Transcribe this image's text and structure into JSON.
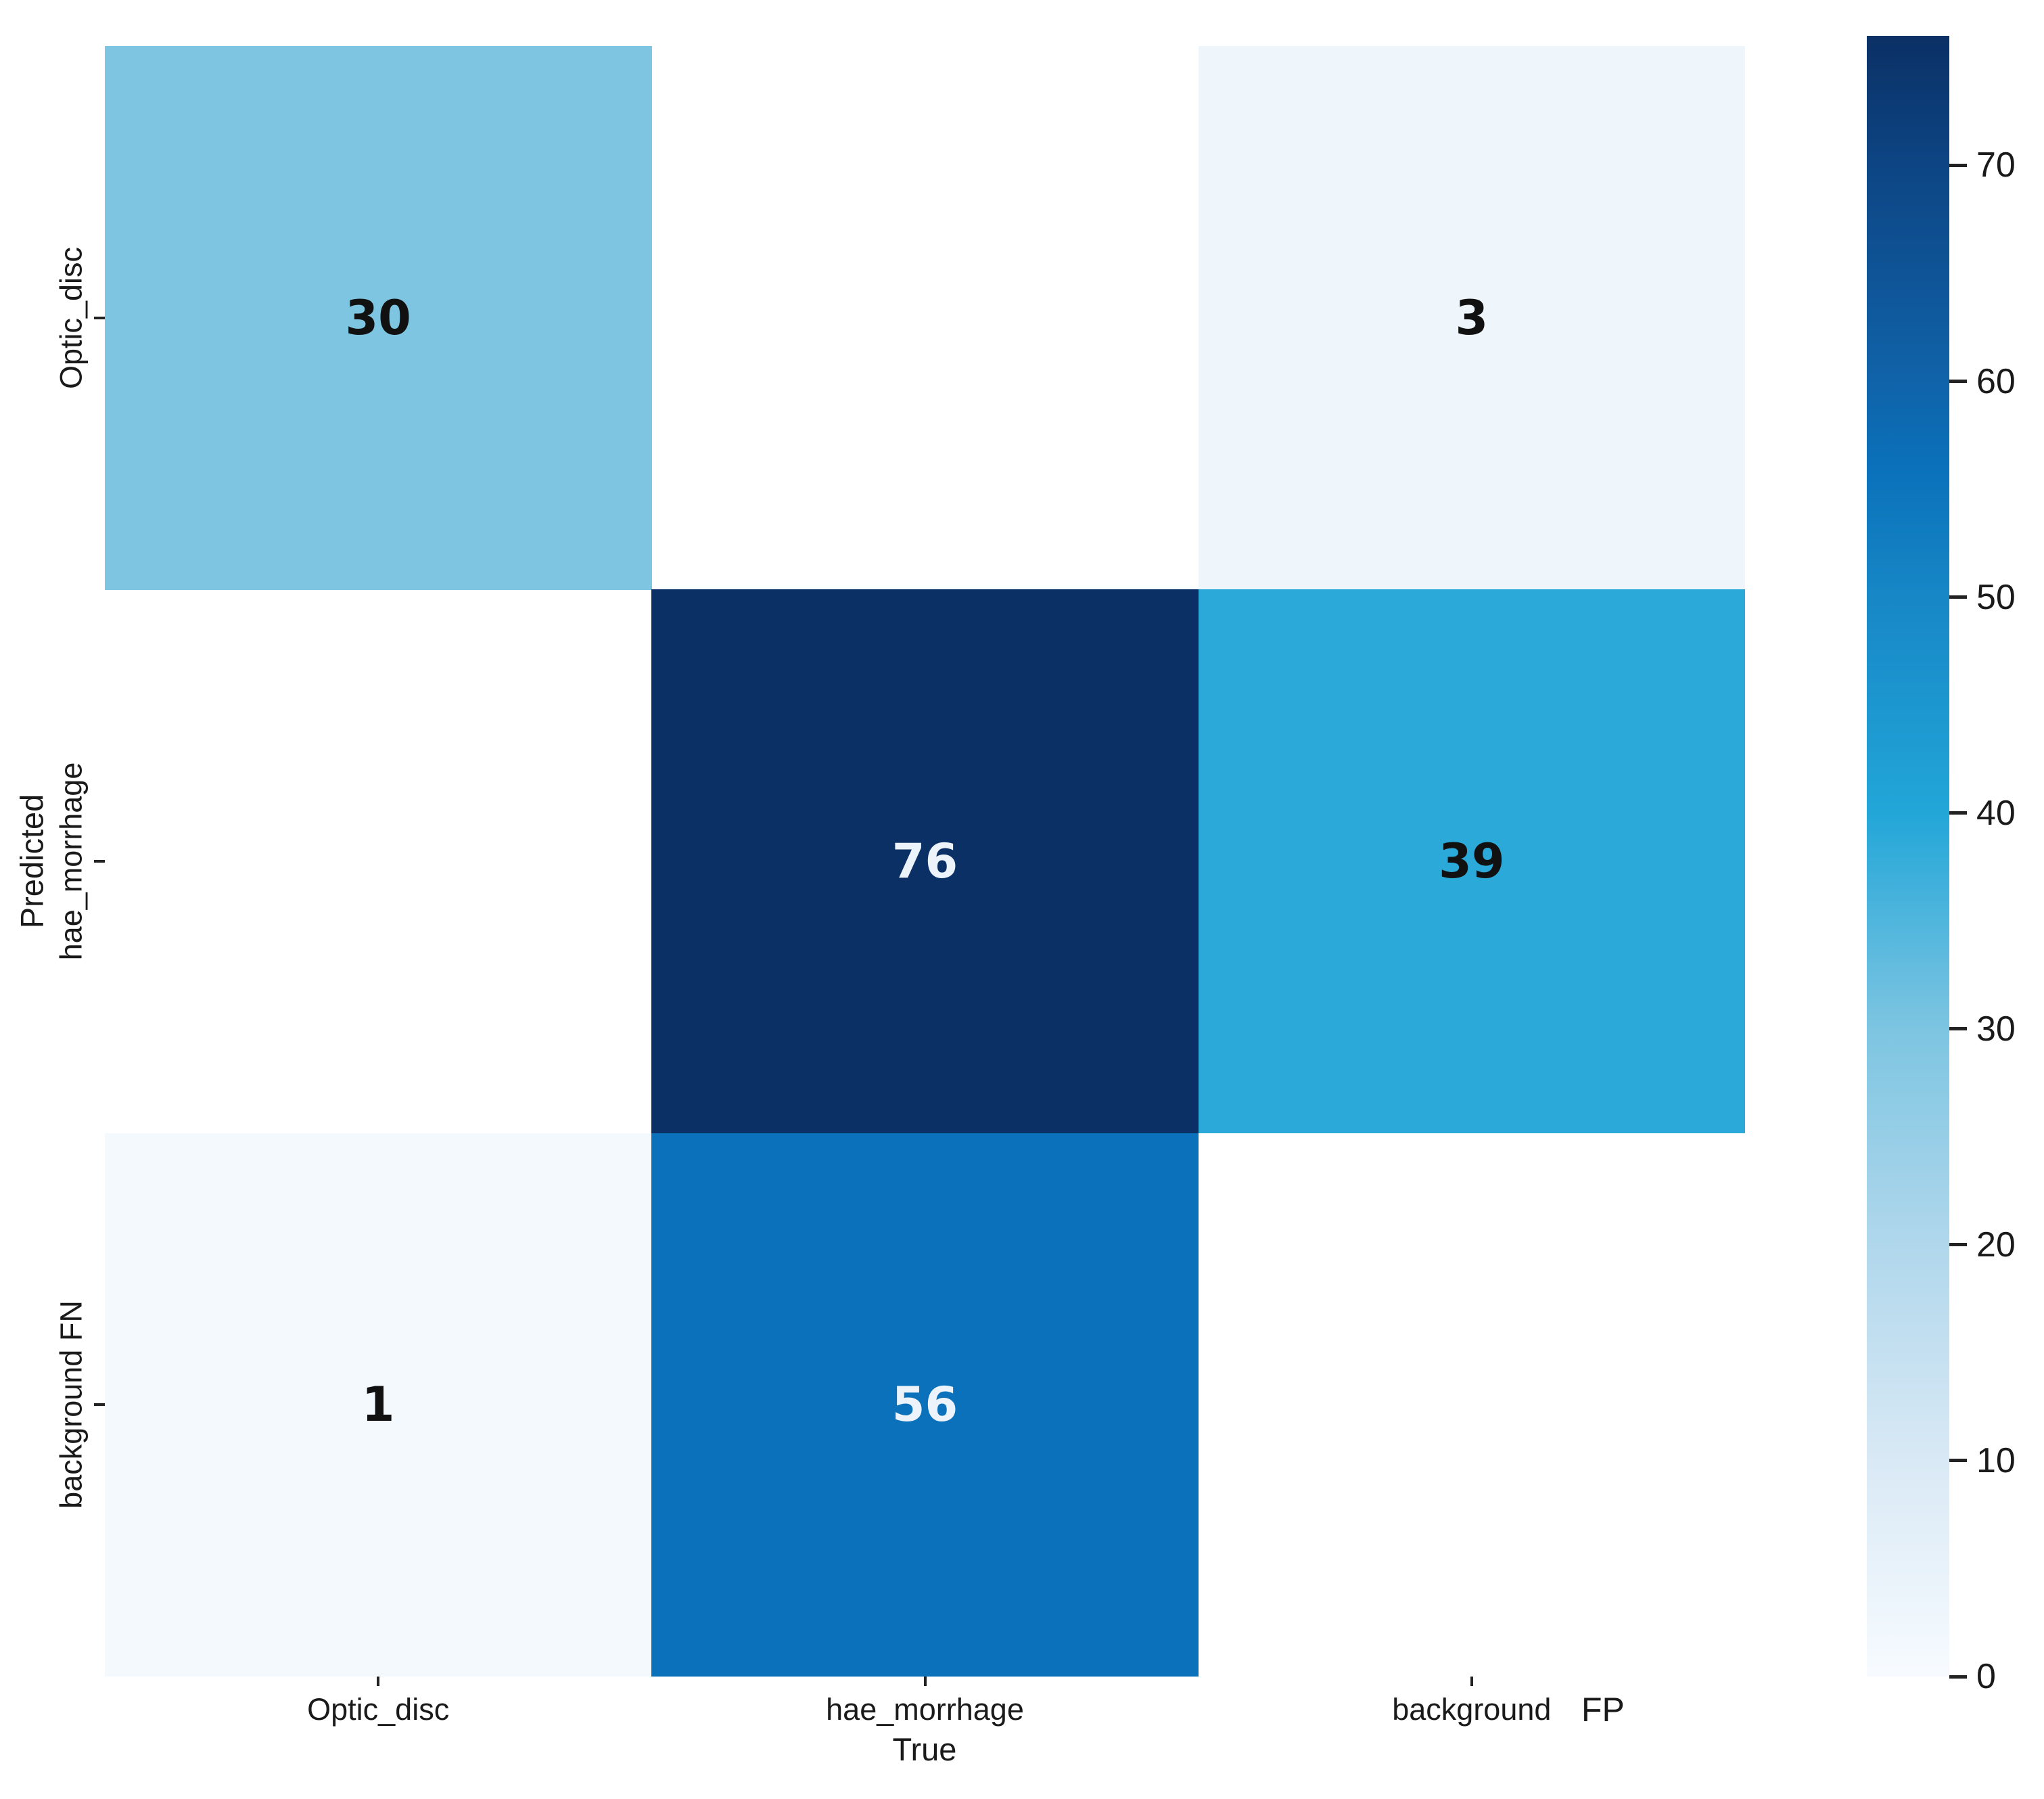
{
  "chart_data": {
    "type": "heatmap",
    "title": "",
    "xlabel": "True",
    "ylabel": "Predicted",
    "x_tick_labels": [
      "Optic_disc",
      "hae_morrhage",
      "background"
    ],
    "x_fp_suffix": "FP",
    "x_categories_full": [
      "Optic_disc",
      "hae_morrhage",
      "background FP"
    ],
    "y_categories": [
      "Optic_disc",
      "hae_morrhage",
      "background FN"
    ],
    "matrix": [
      [
        30,
        null,
        3
      ],
      [
        null,
        76,
        39
      ],
      [
        1,
        56,
        null
      ]
    ],
    "vmin": 0,
    "vmax": 76,
    "grid": false,
    "legend_position": "colorbar-right",
    "colorbar_ticks": [
      0,
      10,
      20,
      30,
      40,
      50,
      60,
      70
    ],
    "colormap_anchors": [
      {
        "value": 0,
        "color": "#f7fbff"
      },
      {
        "value": 10,
        "color": "#d9e9f5"
      },
      {
        "value": 20,
        "color": "#b0d7ec"
      },
      {
        "value": 30,
        "color": "#7dc5e1"
      },
      {
        "value": 40,
        "color": "#22a6d8"
      },
      {
        "value": 50,
        "color": "#1787c6"
      },
      {
        "value": 56,
        "color": "#0a71ba"
      },
      {
        "value": 60,
        "color": "#1063a9"
      },
      {
        "value": 70,
        "color": "#0d4584"
      },
      {
        "value": 76,
        "color": "#0b3065"
      }
    ],
    "annot_text_dark": "#111111",
    "annot_text_light": "#edf3fb",
    "tick_color": "#222222",
    "label_color": "#1a1a1a",
    "background": "#ffffff"
  }
}
